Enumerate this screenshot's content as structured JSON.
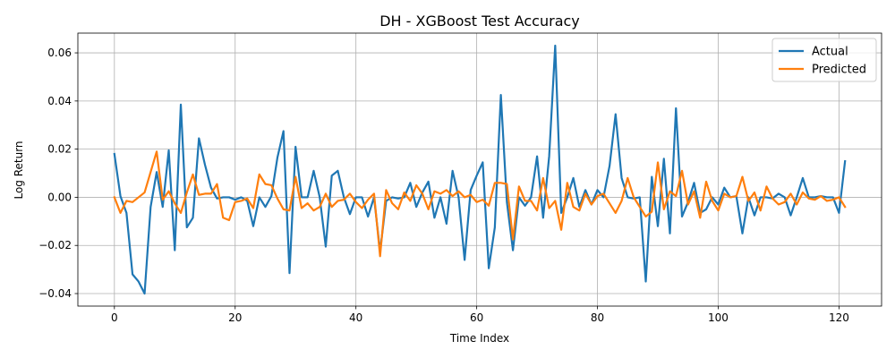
{
  "chart_data": {
    "type": "line",
    "title": "DH - XGBoost Test Accuracy",
    "xlabel": "Time Index",
    "ylabel": "Log Return",
    "xlim": [
      -6.05,
      127.05
    ],
    "ylim": [
      -0.0452,
      0.0682
    ],
    "xticks": [
      0,
      20,
      40,
      60,
      80,
      100,
      120
    ],
    "xtick_labels": [
      "0",
      "20",
      "40",
      "60",
      "80",
      "100",
      "120"
    ],
    "yticks": [
      -0.04,
      -0.02,
      0.0,
      0.02,
      0.04,
      0.06
    ],
    "ytick_labels": [
      "−0.04",
      "−0.02",
      "0.00",
      "0.02",
      "0.04",
      "0.06"
    ],
    "grid": true,
    "legend_position": "top-right",
    "series": [
      {
        "name": "Actual",
        "color": "#1f77b4",
        "values": [
          0.018,
          0.0005,
          -0.0065,
          -0.032,
          -0.035,
          -0.04,
          -0.004,
          0.0105,
          -0.004,
          0.0195,
          -0.022,
          0.0385,
          -0.0125,
          -0.0085,
          0.0245,
          0.0135,
          0.004,
          -0.0005,
          0.0,
          0.0,
          -0.001,
          0.0,
          -0.0015,
          -0.012,
          0.0,
          -0.004,
          0.0005,
          0.0165,
          0.0275,
          -0.0315,
          0.021,
          0.0,
          0.0,
          0.011,
          0.0,
          -0.0205,
          0.009,
          0.011,
          0.0,
          -0.007,
          0.0,
          0.0,
          -0.008,
          0.0,
          -0.0225,
          -0.0015,
          0.0,
          -0.0005,
          0.0,
          0.006,
          -0.004,
          0.002,
          0.0065,
          -0.0085,
          0.0,
          -0.011,
          0.011,
          0.0,
          -0.026,
          0.003,
          0.009,
          0.0145,
          -0.0295,
          -0.0125,
          0.0425,
          -0.002,
          -0.022,
          0.0,
          -0.0035,
          0.0,
          0.017,
          -0.0085,
          0.017,
          0.063,
          -0.0065,
          0.0,
          0.008,
          -0.004,
          0.003,
          -0.003,
          0.003,
          0.0,
          0.013,
          0.0345,
          0.008,
          0.0,
          -0.0005,
          0.0,
          -0.035,
          0.0085,
          -0.012,
          0.016,
          -0.015,
          0.037,
          -0.008,
          -0.002,
          0.006,
          -0.0065,
          -0.005,
          0.0,
          -0.003,
          0.004,
          0.0,
          0.0005,
          -0.015,
          0.0,
          -0.0075,
          0.0,
          0.0,
          -0.0005,
          0.0015,
          0.0,
          -0.0075,
          0.0,
          0.008,
          0.0,
          0.0,
          0.0005,
          0.0,
          0.0,
          -0.0065,
          0.015
        ]
      },
      {
        "name": "Predicted",
        "color": "#ff7f0e",
        "values": [
          0.0,
          -0.0065,
          -0.0015,
          -0.002,
          0.0,
          0.002,
          0.0105,
          0.019,
          -0.001,
          0.0025,
          -0.0025,
          -0.0065,
          0.002,
          0.0095,
          0.001,
          0.0015,
          0.0015,
          0.0055,
          -0.0085,
          -0.0095,
          -0.002,
          -0.0015,
          -0.0005,
          -0.0045,
          0.0095,
          0.0055,
          0.005,
          -0.0005,
          -0.005,
          -0.0055,
          0.0085,
          -0.0045,
          -0.0025,
          -0.0055,
          -0.004,
          0.0015,
          -0.004,
          -0.0015,
          -0.001,
          0.0015,
          -0.002,
          -0.0045,
          -0.001,
          0.0015,
          -0.0245,
          0.003,
          -0.0025,
          -0.005,
          0.002,
          -0.0015,
          0.005,
          0.0015,
          -0.005,
          0.0025,
          0.0015,
          0.003,
          0.0005,
          0.0025,
          0.0,
          0.001,
          -0.002,
          -0.001,
          -0.0035,
          0.006,
          0.006,
          0.0055,
          -0.0175,
          0.0045,
          -0.0015,
          -0.0015,
          -0.0055,
          0.008,
          -0.0045,
          -0.0015,
          -0.0135,
          0.006,
          -0.004,
          -0.0055,
          0.0015,
          -0.003,
          0.0005,
          0.0015,
          -0.0025,
          -0.0065,
          -0.0015,
          0.008,
          0.0,
          -0.004,
          -0.008,
          -0.006,
          0.0145,
          -0.005,
          0.0025,
          0.0005,
          0.011,
          -0.003,
          0.0025,
          -0.0085,
          0.0065,
          -0.0015,
          -0.0055,
          0.0015,
          0.0,
          0.0005,
          0.0085,
          -0.0015,
          0.002,
          -0.0055,
          0.0045,
          -0.0005,
          -0.003,
          -0.002,
          0.0015,
          -0.003,
          0.002,
          -0.0005,
          -0.001,
          0.0005,
          -0.0015,
          -0.001,
          0.0,
          -0.004
        ]
      }
    ]
  }
}
